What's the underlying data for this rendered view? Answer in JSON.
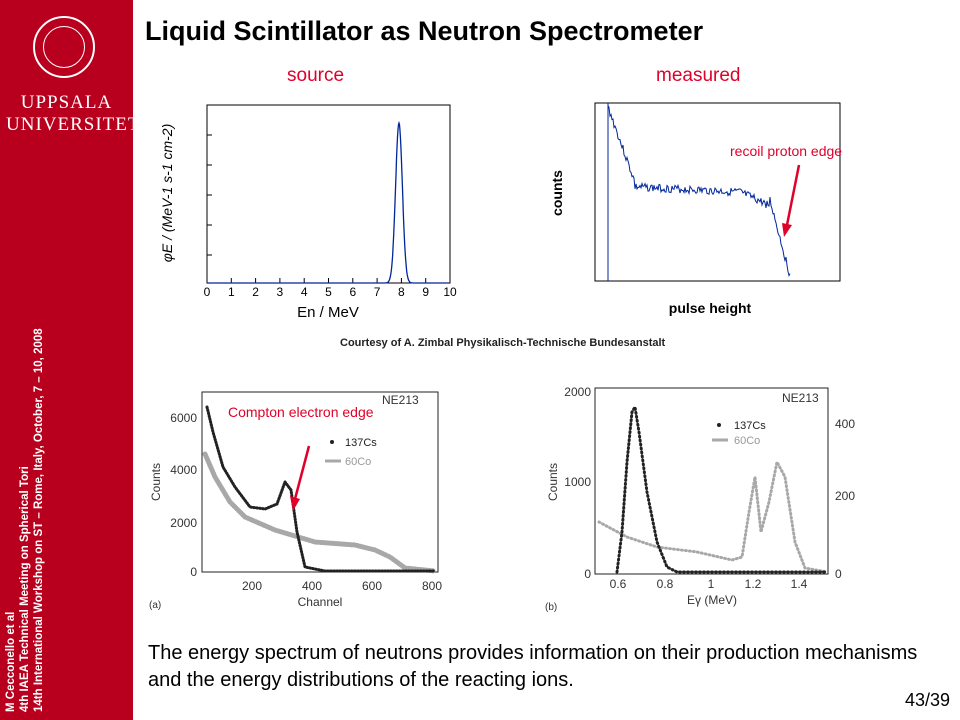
{
  "sidebar": {
    "university_line1": "UPPSALA",
    "university_line2": "UNIVERSITET",
    "credit_author": "M Cecconello et al",
    "credit_meeting1": "4th IAEA Technical Meeting on Spherical Tori",
    "credit_meeting2": "14th International Workshop on ST – Rome, Italy, October, 7 – 10, 2008"
  },
  "slide": {
    "title": "Liquid Scintillator as Neutron Spectrometer",
    "label_source": "source",
    "label_measured": "measured",
    "courtesy": "Courtesy  of  A.  Zimbal  Physikalisch-Technische  Bundesanstalt",
    "body_text": "The energy spectrum of neutrons provides information on their production mechanisms and the energy distributions of the reacting ions.",
    "page_number": "43/39"
  },
  "plots": {
    "source": {
      "ylabel": "φE / (MeV-1 s-1 cm-2)",
      "xlabel": "En / MeV",
      "xticks": [
        "0",
        "1",
        "2",
        "3",
        "4",
        "5",
        "6",
        "7",
        "8",
        "9",
        "10"
      ]
    },
    "measured": {
      "ylabel": "counts",
      "xlabel": "pulse height",
      "annotation": "recoil proton edge"
    },
    "channel": {
      "legend_title": "NE213",
      "legend_cs": "137Cs",
      "legend_co": "60Co",
      "annotation": "Compton electron edge",
      "ylabel": "Counts",
      "xlabel": "Channel",
      "yticks": [
        "0",
        "2000",
        "4000",
        "6000"
      ],
      "xticks": [
        "200",
        "400",
        "600",
        "800"
      ],
      "panel_tag": "(a)"
    },
    "energy": {
      "legend_title": "NE213",
      "legend_cs": "137Cs",
      "legend_co": "60Co",
      "ylabel": "Counts",
      "xlabel": "Eγ (MeV)",
      "yticks_left": [
        "0",
        "1000",
        "2000"
      ],
      "yticks_right": [
        "0",
        "200",
        "400"
      ],
      "xticks": [
        "0.6",
        "0.8",
        "1",
        "1.2",
        "1.4"
      ],
      "panel_tag": "(b)"
    }
  },
  "colors": {
    "sidebar": "#b8001e",
    "accent_red": "#e0002a",
    "trace_blue": "#00269a"
  }
}
